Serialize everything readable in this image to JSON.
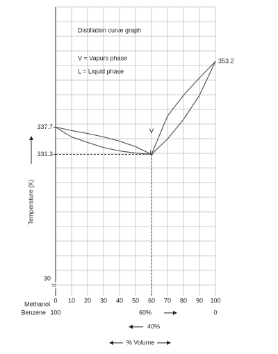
{
  "chart_data": {
    "type": "line",
    "title": "Distillation curve graph",
    "notes": [
      "V = Vapurs phase",
      "L = Liquid phase"
    ],
    "y_label": "Temperature (K)",
    "x_label": "% Volume",
    "x_name": "Methanol",
    "x2_name": "Benzene",
    "x2_ticks": [
      {
        "value": 0,
        "label": "100"
      },
      {
        "value": 60,
        "label": "60%"
      },
      {
        "value": 100,
        "label": "0"
      }
    ],
    "x2_note": "40%",
    "y_break_label": "30",
    "x": [
      0,
      10,
      20,
      30,
      40,
      50,
      60,
      70,
      80,
      90,
      100
    ],
    "series": [
      {
        "name": "V",
        "color": "#555555",
        "values": [
          337.7,
          336.9,
          336.2,
          335.4,
          334.4,
          333.1,
          331.3,
          340.3,
          345.2,
          349.3,
          353.2
        ],
        "value_labels": [
          null,
          null,
          null,
          null,
          null,
          null,
          null,
          null,
          null,
          null,
          "353.2"
        ]
      },
      {
        "name": "L",
        "color": "#555555",
        "values": [
          337.7,
          335.4,
          334.1,
          332.9,
          332.1,
          331.6,
          331.3,
          334.9,
          339.5,
          345.2,
          353.2
        ]
      }
    ],
    "xlim": [
      0,
      100
    ],
    "xticks": [
      0,
      10,
      20,
      30,
      40,
      50,
      60,
      70,
      80,
      90,
      100
    ],
    "ylim": [
      302,
      366
    ],
    "yticks": [
      331.3,
      337.7
    ],
    "grid": true
  }
}
